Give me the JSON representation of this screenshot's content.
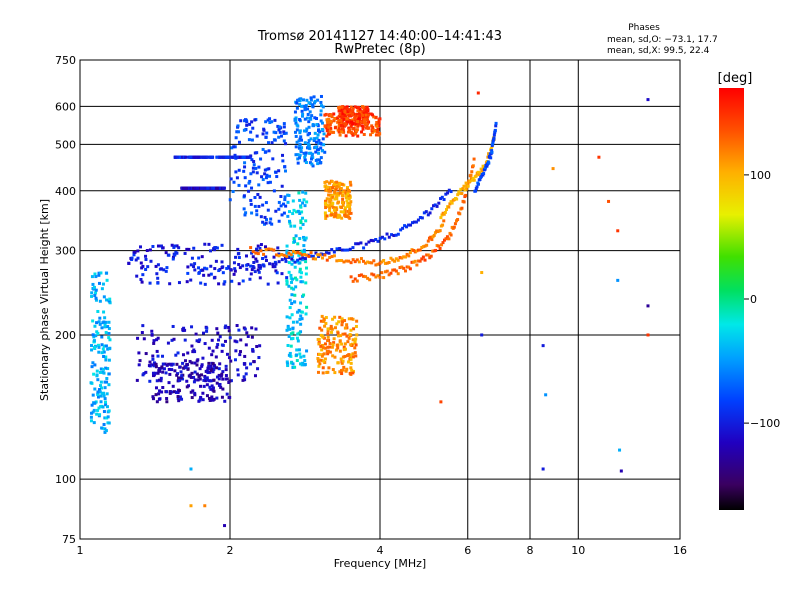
{
  "chart_data": {
    "type": "scatter",
    "title": "Tromsø 20141127 14:40:00–14:41:43",
    "subtitle": "RwPretec (8p)",
    "phases": {
      "heading": "Phases",
      "line_o": "mean, sd,O: −73.1, 17.7",
      "line_x": "mean, sd,X:  99.5, 22.4"
    },
    "xlabel": "Frequency [MHz]",
    "ylabel": "Stationary phase Virtual Height [km]",
    "x_scale": "log",
    "y_scale": "log",
    "xlim": [
      1,
      16
    ],
    "ylim": [
      75,
      750
    ],
    "x_ticks": [
      1,
      2,
      4,
      6,
      8,
      10,
      16
    ],
    "x_tick_labels": [
      "1",
      "2",
      "4",
      "6",
      "8",
      "10",
      "16"
    ],
    "x_grid": [
      2,
      4,
      6,
      8,
      10
    ],
    "y_ticks": [
      75,
      100,
      200,
      300,
      400,
      500,
      600,
      750
    ],
    "y_tick_labels": [
      "75",
      "100",
      "200",
      "300",
      "400",
      "500",
      "600",
      "750"
    ],
    "y_grid": [
      100,
      200,
      300,
      400,
      500,
      600
    ],
    "grid": true,
    "colorbar": {
      "label": "[deg]",
      "min": -170,
      "max": 170,
      "ticks": [
        100,
        0,
        -100
      ],
      "tick_labels": [
        "100",
        "0",
        "−100"
      ]
    },
    "series": [
      {
        "x": [
          1.55,
          2.2
        ],
        "y": [
          470,
          470
        ],
        "phase": -95
      },
      {
        "x": [
          1.6,
          1.95
        ],
        "y": [
          405,
          405
        ],
        "phase": -110
      },
      {
        "x": [
          1.25,
          2.6
        ],
        "y": [
          255,
          310
        ],
        "phase": -100
      },
      {
        "x": [
          1.3,
          2.3
        ],
        "y": [
          160,
          210
        ],
        "phase": -110
      },
      {
        "x": [
          1.4,
          2.0
        ],
        "y": [
          145,
          175
        ],
        "phase": -120
      },
      {
        "x": [
          2.0,
          2.6
        ],
        "y": [
          340,
          570
        ],
        "phase": -80
      },
      {
        "x": [
          2.7,
          3.1
        ],
        "y": [
          450,
          630
        ],
        "phase": -60
      },
      {
        "x": [
          1.05,
          1.15
        ],
        "y": [
          125,
          270
        ],
        "phase": -40
      },
      {
        "x": [
          2.6,
          2.85
        ],
        "y": [
          170,
          400
        ],
        "phase": -30
      },
      {
        "x": [
          3.1,
          3.5
        ],
        "y": [
          350,
          420
        ],
        "phase": 115
      },
      {
        "x": [
          3.0,
          3.6
        ],
        "y": [
          165,
          220
        ],
        "phase": 120
      },
      {
        "x": [
          3.1,
          4.0
        ],
        "y": [
          520,
          580
        ],
        "phase": 145
      },
      {
        "x": [
          3.3,
          3.8
        ],
        "y": [
          550,
          600
        ],
        "phase": 150
      }
    ],
    "traces": [
      {
        "x": [
          1.7,
          2.2,
          2.7,
          3.2,
          3.8,
          4.4,
          5.0,
          5.6
        ],
        "y": [
          272,
          280,
          288,
          298,
          310,
          330,
          360,
          405
        ],
        "phase": -95
      },
      {
        "x": [
          2.2,
          2.6,
          3.0,
          3.5,
          4.0,
          4.5,
          5.0,
          5.4
        ],
        "y": [
          300,
          296,
          292,
          286,
          284,
          292,
          312,
          345
        ],
        "phase": 128
      },
      {
        "x": [
          3.5,
          4.0,
          4.5,
          5.0,
          5.5,
          5.9,
          6.2
        ],
        "y": [
          262,
          266,
          275,
          292,
          320,
          380,
          470
        ],
        "phase": 135
      },
      {
        "x": [
          5.3,
          5.7,
          6.1,
          6.5,
          6.8
        ],
        "y": [
          355,
          390,
          420,
          450,
          520
        ],
        "phase": 110
      },
      {
        "x": [
          6.2,
          6.5,
          6.7,
          6.85
        ],
        "y": [
          400,
          440,
          480,
          560
        ],
        "phase": -80
      }
    ],
    "points": [
      {
        "x": 1.67,
        "y": 105,
        "phase": -40
      },
      {
        "x": 1.67,
        "y": 88,
        "phase": 115
      },
      {
        "x": 1.78,
        "y": 88,
        "phase": 125
      },
      {
        "x": 1.95,
        "y": 80,
        "phase": -120
      },
      {
        "x": 8.5,
        "y": 190,
        "phase": -100
      },
      {
        "x": 8.6,
        "y": 150,
        "phase": -50
      },
      {
        "x": 8.5,
        "y": 105,
        "phase": -100
      },
      {
        "x": 8.9,
        "y": 445,
        "phase": 120
      },
      {
        "x": 11.0,
        "y": 470,
        "phase": 150
      },
      {
        "x": 11.5,
        "y": 380,
        "phase": 140
      },
      {
        "x": 12.0,
        "y": 330,
        "phase": 150
      },
      {
        "x": 12.1,
        "y": 115,
        "phase": -40
      },
      {
        "x": 12.2,
        "y": 104,
        "phase": -120
      },
      {
        "x": 13.8,
        "y": 620,
        "phase": -110
      },
      {
        "x": 13.8,
        "y": 230,
        "phase": -130
      },
      {
        "x": 13.8,
        "y": 200,
        "phase": 150
      },
      {
        "x": 12.0,
        "y": 260,
        "phase": -50
      },
      {
        "x": 6.4,
        "y": 200,
        "phase": -100
      },
      {
        "x": 6.4,
        "y": 270,
        "phase": 110
      },
      {
        "x": 5.3,
        "y": 145,
        "phase": 145
      },
      {
        "x": 6.3,
        "y": 640,
        "phase": 155
      }
    ]
  }
}
